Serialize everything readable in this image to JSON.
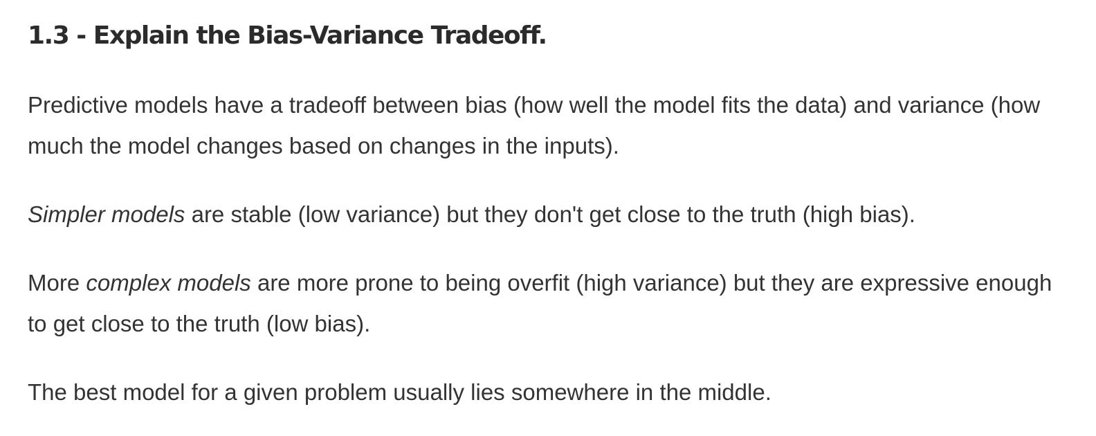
{
  "heading": "1.3 - Explain the Bias-Variance Tradeoff.",
  "paragraphs": {
    "p1": {
      "text": "Predictive models have a tradeoff between bias (how well the model fits the data) and variance (how much the model changes based on changes in the inputs)."
    },
    "p2": {
      "emphasis": "Simpler models",
      "rest": " are stable (low variance) but they don't get close to the truth (high bias)."
    },
    "p3": {
      "prefix": "More ",
      "emphasis": "complex models",
      "rest": " are more prone to being overfit (high variance) but they are expressive enough to get close to the truth (low bias)."
    },
    "p4": {
      "text": "The best model for a given problem usually lies somewhere in the middle."
    }
  }
}
